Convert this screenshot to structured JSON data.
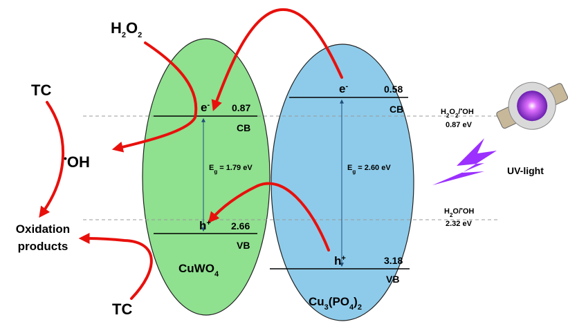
{
  "species": {
    "h2o2": [
      "H",
      "2",
      "O",
      "2"
    ],
    "hydroxyl": [
      "•",
      "OH"
    ],
    "tc_top": "TC",
    "tc_bottom": "TC",
    "products": [
      "Oxidation",
      "products"
    ]
  },
  "cuwo4": {
    "name": [
      "CuWO",
      "4"
    ],
    "cb_carrier": [
      "e",
      "-"
    ],
    "cb_potential": "0.87",
    "cb_label": "CB",
    "vb_carrier": [
      "h",
      "+"
    ],
    "vb_potential": "2.66",
    "vb_label": "VB",
    "band_gap": [
      "E",
      "g",
      " = 1.79 eV"
    ]
  },
  "cu3po42": {
    "name": [
      "Cu",
      "3",
      "(PO",
      "4",
      ")",
      "2"
    ],
    "cb_carrier": [
      "e",
      "-"
    ],
    "cb_potential": "0.58",
    "cb_label": "CB",
    "vb_carrier": [
      "h",
      "+"
    ],
    "vb_potential": "3.18",
    "vb_label": "VB",
    "band_gap": [
      "E",
      "g",
      " = 2.60 eV"
    ]
  },
  "redox_levels": [
    {
      "couple": [
        "H",
        "2",
        "O",
        "2",
        "/",
        "•",
        "OH"
      ],
      "potential": "0.87 eV"
    },
    {
      "couple": [
        "H",
        "2",
        "O/",
        "•",
        "OH"
      ],
      "potential": "2.32 eV"
    }
  ],
  "light": "UV-light"
}
